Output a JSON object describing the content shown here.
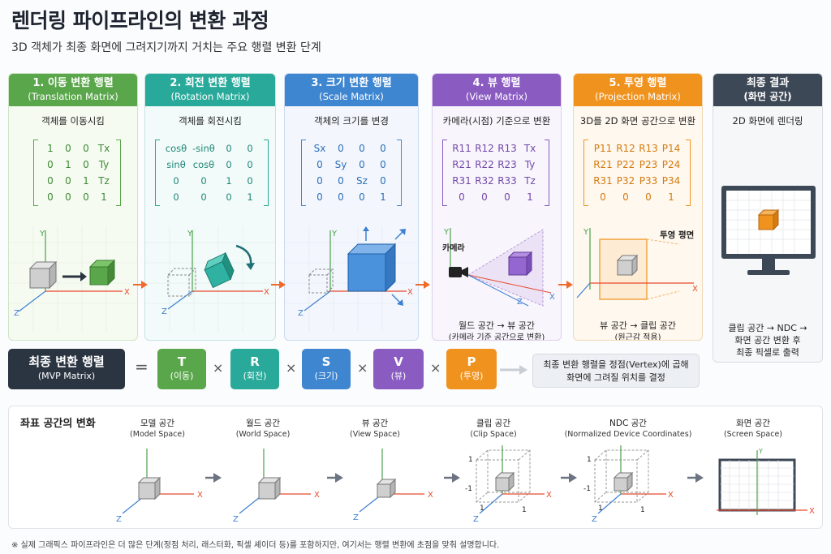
{
  "title": "렌더링 파이프라인의 변환 과정",
  "subtitle": "3D 객체가 최종 화면에 그려지기까지 거치는 주요 행렬 변환 단계",
  "colors": {
    "translation": "#5aa64a",
    "rotation": "#29a99a",
    "scale": "#3f86d1",
    "view": "#8a5cc1",
    "projection": "#f0921e",
    "final": "#3d4856",
    "mvp": "#2b3542"
  },
  "panels": [
    {
      "title": "1. 이동 변환 행렬",
      "subtitle": "(Translation Matrix)",
      "desc": "객체를 이동시킴",
      "matrix": [
        "1",
        "0",
        "0",
        "Tx",
        "0",
        "1",
        "0",
        "Ty",
        "0",
        "0",
        "1",
        "Tz",
        "0",
        "0",
        "0",
        "1"
      ]
    },
    {
      "title": "2. 회전 변환 행렬",
      "subtitle": "(Rotation Matrix)",
      "desc": "객체를 회전시킴",
      "matrix": [
        "cosθ",
        "-sinθ",
        "0",
        "0",
        "sinθ",
        "cosθ",
        "0",
        "0",
        "0",
        "0",
        "1",
        "0",
        "0",
        "0",
        "0",
        "1"
      ]
    },
    {
      "title": "3. 크기 변환 행렬",
      "subtitle": "(Scale Matrix)",
      "desc": "객체의 크기를 변경",
      "matrix": [
        "Sx",
        "0",
        "0",
        "0",
        "0",
        "Sy",
        "0",
        "0",
        "0",
        "0",
        "Sz",
        "0",
        "0",
        "0",
        "0",
        "1"
      ]
    },
    {
      "title": "4. 뷰 행렬",
      "subtitle": "(View Matrix)",
      "desc": "카메라(시점) 기준으로 변환",
      "matrix": [
        "R11",
        "R12",
        "R13",
        "Tx",
        "R21",
        "R22",
        "R23",
        "Ty",
        "R31",
        "R32",
        "R33",
        "Tz",
        "0",
        "0",
        "0",
        "1"
      ],
      "camera_label": "카메라",
      "note1": "월드 공간 → 뷰 공간",
      "note2": "(카메라 기준 공간으로 변환)"
    },
    {
      "title": "5. 투영 행렬",
      "subtitle": "(Projection Matrix)",
      "desc": "3D를 2D 화면 공간으로 변환",
      "matrix": [
        "P11",
        "R12",
        "R13",
        "P14",
        "R21",
        "P22",
        "P23",
        "P24",
        "R31",
        "P32",
        "P33",
        "P34",
        "0",
        "0",
        "0",
        "1"
      ],
      "plane_label": "투영 평면",
      "note1": "뷰 공간 → 클립 공간",
      "note2": "(원근감 적용)"
    },
    {
      "title": "최종 결과",
      "subtitle": "(화면 공간)",
      "desc": "2D 화면에 렌더링",
      "note1": "클립 공간 → NDC →",
      "note2": "화면 공간 변환 후",
      "note3": "최종 픽셀로 출력"
    }
  ],
  "axis": {
    "x": "X",
    "y": "Y",
    "z": "Z"
  },
  "mvp": {
    "title": "최종 변환 행렬",
    "subtitle": "(MVP Matrix)",
    "equals": "=",
    "times": "×",
    "terms": [
      {
        "letter": "T",
        "label": "(이동)"
      },
      {
        "letter": "R",
        "label": "(회전)"
      },
      {
        "letter": "S",
        "label": "(크기)"
      },
      {
        "letter": "V",
        "label": "(뷰)"
      },
      {
        "letter": "P",
        "label": "(투영)"
      }
    ],
    "note1": "최종 변환 행렬을 정점(Vertex)에 곱해",
    "note2": "화면에 그려질 위치를 결정"
  },
  "coord": {
    "title": "좌표 공간의 변화",
    "spaces": [
      {
        "name": "모델 공간",
        "sub": "(Model Space)"
      },
      {
        "name": "월드 공간",
        "sub": "(World Space)"
      },
      {
        "name": "뷰 공간",
        "sub": "(View Space)"
      },
      {
        "name": "클립 공간",
        "sub": "(Clip Space)"
      },
      {
        "name": "NDC 공간",
        "sub": "(Normalized Device Coordinates)"
      },
      {
        "name": "화면 공간",
        "sub": "(Screen Space)"
      }
    ],
    "tick_pos": "1",
    "tick_neg": "-1"
  },
  "footnote": "※ 실제 그래픽스 파이프라인은 더 많은 단계(정점 처리, 래스터화, 픽셀 셰이더 등)를 포함하지만, 여기서는 행렬 변환에 초점을 맞춰 설명합니다."
}
